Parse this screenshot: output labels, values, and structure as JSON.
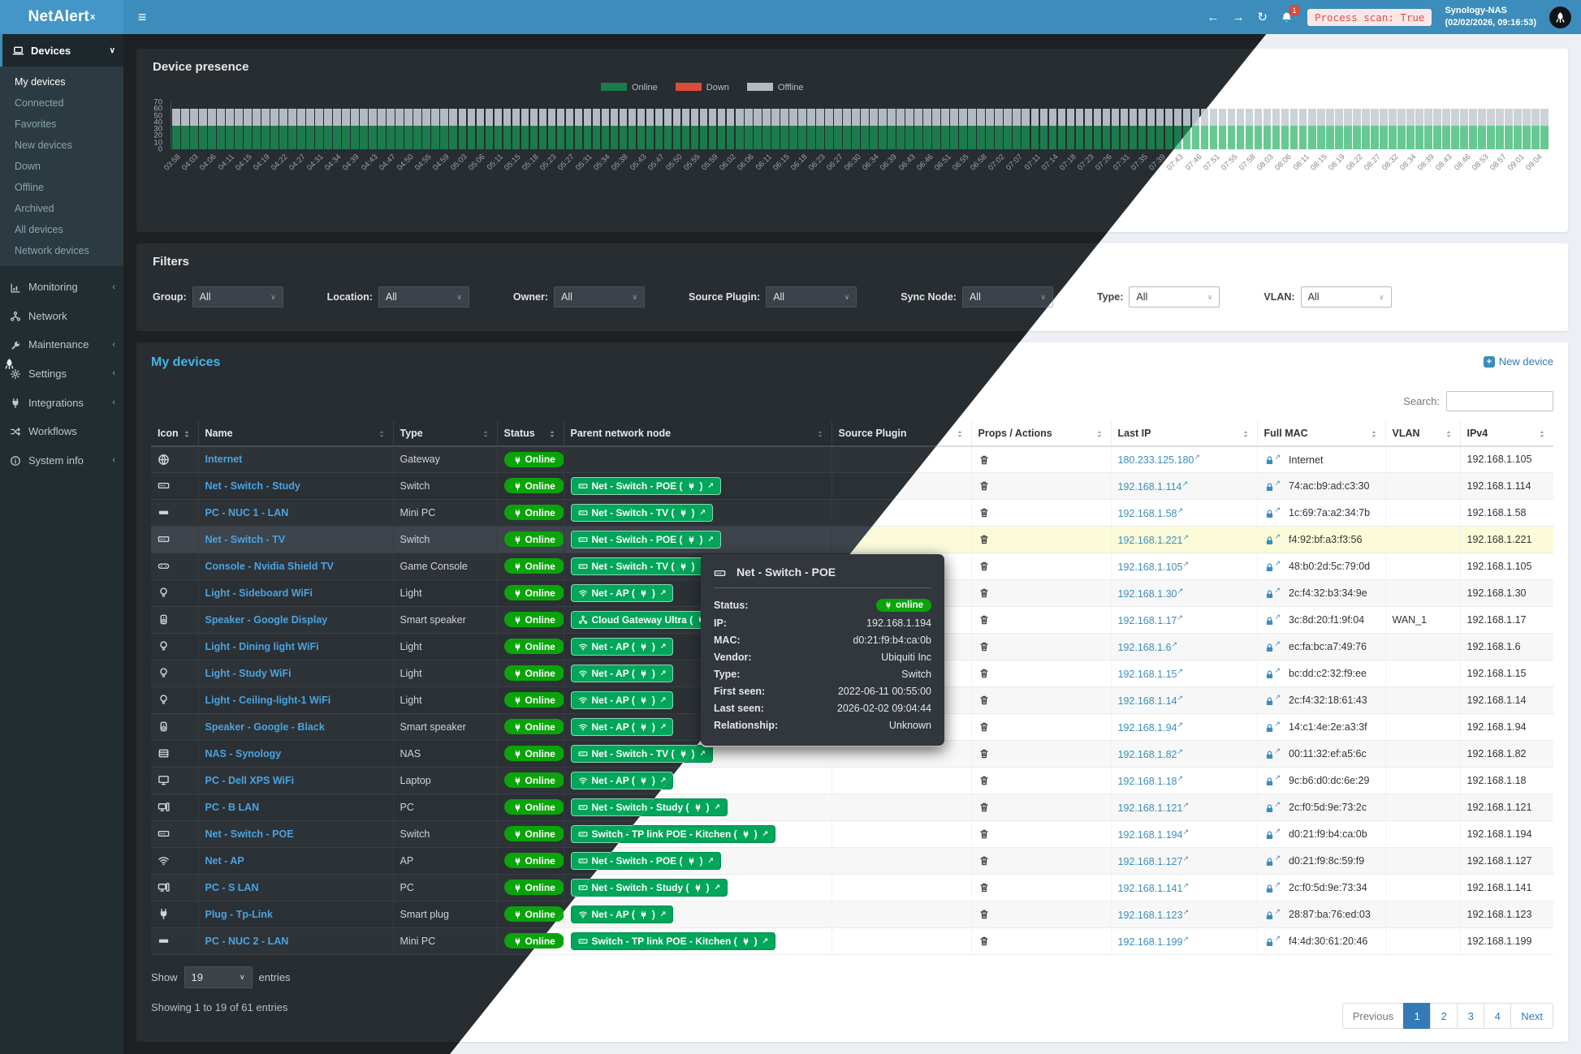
{
  "header": {
    "brand": "NetAlert",
    "brand_sup": "x",
    "bell_count": "1",
    "scan_text": "Process scan: True",
    "host": "Synology-NAS",
    "datetime": "(02/02/2026, 09:16:53)"
  },
  "sidebar": {
    "devices_header": {
      "label": "Devices",
      "icon": "laptop"
    },
    "device_views": [
      "My devices",
      "Connected",
      "Favorites",
      "New devices",
      "Down",
      "Offline",
      "Archived",
      "All devices",
      "Network devices"
    ],
    "active_view": "My devices",
    "sections": [
      {
        "label": "Monitoring",
        "icon": "chart",
        "chevron": true
      },
      {
        "label": "Network",
        "icon": "share",
        "chevron": false
      },
      {
        "label": "Maintenance",
        "icon": "wrench",
        "chevron": true
      },
      {
        "label": "Settings",
        "icon": "gear",
        "chevron": true
      },
      {
        "label": "Integrations",
        "icon": "plug",
        "chevron": true
      },
      {
        "label": "Workflows",
        "icon": "shuffle",
        "chevron": false
      },
      {
        "label": "System info",
        "icon": "info",
        "chevron": true
      }
    ]
  },
  "chart_data": {
    "type": "stacked-bar",
    "title": "Device presence",
    "legend": [
      {
        "label": "Online",
        "color_dark": "#1b7b4c",
        "color_light": "#66c992"
      },
      {
        "label": "Down",
        "color_dark": "#dd4b39",
        "color_light": "#dd4b39"
      },
      {
        "label": "Offline",
        "color_dark": "#b4bac1",
        "color_light": "#ccd2d8"
      }
    ],
    "y_ticks": [
      0,
      10,
      20,
      30,
      40,
      50,
      60,
      70
    ],
    "y_max": 70,
    "bar_count": 154,
    "x_labels": [
      "03:58",
      "04:03",
      "04:06",
      "04:11",
      "04:15",
      "04:19",
      "04:22",
      "04:27",
      "04:31",
      "04:34",
      "04:39",
      "04:43",
      "04:47",
      "04:50",
      "04:55",
      "04:59",
      "05:03",
      "05:06",
      "05:11",
      "05:15",
      "05:18",
      "05:23",
      "05:27",
      "05:31",
      "05:34",
      "05:38",
      "05:43",
      "05:47",
      "05:50",
      "05:55",
      "05:59",
      "06:02",
      "06:06",
      "06:11",
      "06:15",
      "06:18",
      "06:23",
      "06:27",
      "06:30",
      "06:34",
      "06:39",
      "06:43",
      "06:46",
      "06:51",
      "06:55",
      "06:58",
      "07:02",
      "07:07",
      "07:11",
      "07:14",
      "07:18",
      "07:23",
      "07:26",
      "07:31",
      "07:35",
      "07:39",
      "07:43",
      "07:46",
      "07:51",
      "07:55",
      "07:58",
      "08:03",
      "08:06",
      "08:11",
      "08:15",
      "08:19",
      "08:22",
      "08:27",
      "08:32",
      "08:34",
      "08:39",
      "08:43",
      "08:46",
      "08:53",
      "08:57",
      "09:01",
      "09:04"
    ],
    "series": [
      {
        "name": "Online",
        "uniform_value": 35
      },
      {
        "name": "Down",
        "uniform_value": 0
      },
      {
        "name": "Offline",
        "uniform_value": 25
      }
    ]
  },
  "filters": {
    "title": "Filters",
    "groups": [
      {
        "label": "Group:",
        "value": "All"
      },
      {
        "label": "Location:",
        "value": "All"
      },
      {
        "label": "Owner:",
        "value": "All"
      },
      {
        "label": "Source Plugin:",
        "value": "All"
      },
      {
        "label": "Sync Node:",
        "value": "All"
      },
      {
        "label": "Type:",
        "value": "All"
      },
      {
        "label": "VLAN:",
        "value": "All"
      }
    ]
  },
  "devices": {
    "title": "My devices",
    "new_device": "New device",
    "search_label": "Search:",
    "search_value": "",
    "columns": [
      {
        "label": "Icon",
        "sorted": true
      },
      {
        "label": "Name",
        "sorted": false
      },
      {
        "label": "Type",
        "sorted": false
      },
      {
        "label": "Status",
        "sorted": true
      },
      {
        "label": "Parent network node",
        "sorted": false
      },
      {
        "label": "Source Plugin",
        "sorted": false
      },
      {
        "label": "Props / Actions",
        "sorted": false
      },
      {
        "label": "Last IP",
        "sorted": false
      },
      {
        "label": "Full MAC",
        "sorted": false
      },
      {
        "label": "VLAN",
        "sorted": false
      },
      {
        "label": "IPv4",
        "sorted": false
      }
    ],
    "rows": [
      {
        "icon": "globe",
        "name": "Internet",
        "type": "Gateway",
        "status": "Online",
        "parent": null,
        "source_plugin": "",
        "last_ip": "180.233.125.180",
        "mac": "Internet",
        "vlan": "",
        "ipv4": "192.168.1.105",
        "highlight": false
      },
      {
        "icon": "switch",
        "name": "Net - Switch - Study",
        "type": "Switch",
        "status": "Online",
        "parent": {
          "icon": "switch",
          "label": "Net - Switch - POE"
        },
        "source_plugin": "",
        "last_ip": "192.168.1.114",
        "mac": "74:ac:b9:ad:c3:30",
        "vlan": "",
        "ipv4": "192.168.1.114",
        "highlight": false
      },
      {
        "icon": "minipc",
        "name": "PC - NUC 1 - LAN",
        "type": "Mini PC",
        "status": "Online",
        "parent": {
          "icon": "switch",
          "label": "Net - Switch - TV"
        },
        "source_plugin": "",
        "last_ip": "192.168.1.58",
        "mac": "1c:69:7a:a2:34:7b",
        "vlan": "",
        "ipv4": "192.168.1.58",
        "highlight": false
      },
      {
        "icon": "switch",
        "name": "Net - Switch - TV",
        "type": "Switch",
        "status": "Online",
        "parent": {
          "icon": "switch",
          "label": "Net - Switch - POE"
        },
        "source_plugin": "",
        "last_ip": "192.168.1.221",
        "mac": "f4:92:bf:a3:f3:56",
        "vlan": "",
        "ipv4": "192.168.1.221",
        "highlight": true
      },
      {
        "icon": "gamepad",
        "name": "Console - Nvidia Shield TV",
        "type": "Game Console",
        "status": "Online",
        "parent": {
          "icon": "switch",
          "label": "Net - Switch - TV"
        },
        "source_plugin": "",
        "last_ip": "192.168.1.105",
        "mac": "48:b0:2d:5c:79:0d",
        "vlan": "",
        "ipv4": "192.168.1.105",
        "highlight": false
      },
      {
        "icon": "bulb",
        "name": "Light - Sideboard WiFi",
        "type": "Light",
        "status": "Online",
        "parent": {
          "icon": "wifi",
          "label": "Net - AP"
        },
        "source_plugin": "",
        "last_ip": "192.168.1.30",
        "mac": "2c:f4:32:b3:34:9e",
        "vlan": "",
        "ipv4": "192.168.1.30",
        "highlight": false
      },
      {
        "icon": "speaker",
        "name": "Speaker - Google Display",
        "type": "Smart speaker",
        "status": "Online",
        "parent": {
          "icon": "share",
          "label": "Cloud Gateway Ultra"
        },
        "source_plugin": "",
        "last_ip": "192.168.1.17",
        "mac": "3c:8d:20:f1:9f:04",
        "vlan": "WAN_1",
        "ipv4": "192.168.1.17",
        "highlight": false
      },
      {
        "icon": "bulb",
        "name": "Light - Dining light WiFi",
        "type": "Light",
        "status": "Online",
        "parent": {
          "icon": "wifi",
          "label": "Net - AP"
        },
        "source_plugin": "",
        "last_ip": "192.168.1.6",
        "mac": "ec:fa:bc:a7:49:76",
        "vlan": "",
        "ipv4": "192.168.1.6",
        "highlight": false
      },
      {
        "icon": "bulb",
        "name": "Light - Study WiFi",
        "type": "Light",
        "status": "Online",
        "parent": {
          "icon": "wifi",
          "label": "Net - AP"
        },
        "source_plugin": "",
        "last_ip": "192.168.1.15",
        "mac": "bc:dd:c2:32:f9:ee",
        "vlan": "",
        "ipv4": "192.168.1.15",
        "highlight": false
      },
      {
        "icon": "bulb",
        "name": "Light - Ceiling-light-1 WiFi",
        "type": "Light",
        "status": "Online",
        "parent": {
          "icon": "wifi",
          "label": "Net - AP"
        },
        "source_plugin": "",
        "last_ip": "192.168.1.14",
        "mac": "2c:f4:32:18:61:43",
        "vlan": "",
        "ipv4": "192.168.1.14",
        "highlight": false
      },
      {
        "icon": "speaker",
        "name": "Speaker - Google - Black",
        "type": "Smart speaker",
        "status": "Online",
        "parent": {
          "icon": "wifi",
          "label": "Net - AP"
        },
        "source_plugin": "",
        "last_ip": "192.168.1.94",
        "mac": "14:c1:4e:2e:a3:3f",
        "vlan": "",
        "ipv4": "192.168.1.94",
        "highlight": false
      },
      {
        "icon": "nas",
        "name": "NAS - Synology",
        "type": "NAS",
        "status": "Online",
        "parent": {
          "icon": "switch",
          "label": "Net - Switch - TV"
        },
        "source_plugin": "",
        "last_ip": "192.168.1.82",
        "mac": "00:11:32:ef:a5:6c",
        "vlan": "",
        "ipv4": "192.168.1.82",
        "highlight": false
      },
      {
        "icon": "monitor",
        "name": "PC - Dell XPS WiFi",
        "type": "Laptop",
        "status": "Online",
        "parent": {
          "icon": "wifi",
          "label": "Net - AP"
        },
        "source_plugin": "",
        "last_ip": "192.168.1.18",
        "mac": "9c:b6:d0:dc:6e:29",
        "vlan": "",
        "ipv4": "192.168.1.18",
        "highlight": false
      },
      {
        "icon": "pc",
        "name": "PC - B LAN",
        "type": "PC",
        "status": "Online",
        "parent": {
          "icon": "switch",
          "label": "Net - Switch - Study"
        },
        "source_plugin": "",
        "last_ip": "192.168.1.121",
        "mac": "2c:f0:5d:9e:73:2c",
        "vlan": "",
        "ipv4": "192.168.1.121",
        "highlight": false
      },
      {
        "icon": "switch",
        "name": "Net - Switch - POE",
        "type": "Switch",
        "status": "Online",
        "parent": {
          "icon": "switch",
          "label": "Switch - TP link POE - Kitchen"
        },
        "source_plugin": "",
        "last_ip": "192.168.1.194",
        "mac": "d0:21:f9:b4:ca:0b",
        "vlan": "",
        "ipv4": "192.168.1.194",
        "highlight": false
      },
      {
        "icon": "wifi",
        "name": "Net - AP",
        "type": "AP",
        "status": "Online",
        "parent": {
          "icon": "switch",
          "label": "Net - Switch - POE"
        },
        "source_plugin": "",
        "last_ip": "192.168.1.127",
        "mac": "d0:21:f9:8c:59:f9",
        "vlan": "",
        "ipv4": "192.168.1.127",
        "highlight": false
      },
      {
        "icon": "pc",
        "name": "PC - S LAN",
        "type": "PC",
        "status": "Online",
        "parent": {
          "icon": "switch",
          "label": "Net - Switch - Study"
        },
        "source_plugin": "",
        "last_ip": "192.168.1.141",
        "mac": "2c:f0:5d:9e:73:34",
        "vlan": "",
        "ipv4": "192.168.1.141",
        "highlight": false
      },
      {
        "icon": "plug",
        "name": "Plug - Tp-Link",
        "type": "Smart plug",
        "status": "Online",
        "parent": {
          "icon": "wifi",
          "label": "Net - AP"
        },
        "source_plugin": "",
        "last_ip": "192.168.1.123",
        "mac": "28:87:ba:76:ed:03",
        "vlan": "",
        "ipv4": "192.168.1.123",
        "highlight": false
      },
      {
        "icon": "minipc",
        "name": "PC - NUC 2 - LAN",
        "type": "Mini PC",
        "status": "Online",
        "parent": {
          "icon": "switch",
          "label": "Switch - TP link POE - Kitchen"
        },
        "source_plugin": "",
        "last_ip": "192.168.1.199",
        "mac": "f4:4d:30:61:20:46",
        "vlan": "",
        "ipv4": "192.168.1.199",
        "highlight": false
      }
    ],
    "show_label": "Show",
    "entries_value": "19",
    "entries_suffix": "entries",
    "summary": "Showing 1 to 19 of 61 entries",
    "pagination": {
      "previous": "Previous",
      "pages": [
        "1",
        "2",
        "3",
        "4"
      ],
      "active": "1",
      "next": "Next"
    }
  },
  "tooltip": {
    "title": "Net - Switch - POE",
    "icon": "switch",
    "fields": [
      {
        "label": "Status:",
        "value": "online",
        "badge": true
      },
      {
        "label": "IP:",
        "value": "192.168.1.194",
        "badge": false
      },
      {
        "label": "MAC:",
        "value": "d0:21:f9:b4:ca:0b",
        "badge": false
      },
      {
        "label": "Vendor:",
        "value": "Ubiquiti Inc",
        "badge": false
      },
      {
        "label": "Type:",
        "value": "Switch",
        "badge": false
      },
      {
        "label": "First seen:",
        "value": "2022-06-11 00:55:00",
        "badge": false
      },
      {
        "label": "Last seen:",
        "value": "2026-02-02 09:04:44",
        "badge": false
      },
      {
        "label": "Relationship:",
        "value": "Unknown",
        "badge": false
      }
    ]
  },
  "colors": {
    "header_blue": "#3c8dbc",
    "sidebar_dark": "#222d32",
    "submenu_bg": "#2c3b41",
    "online_badge_green": "#0aa40a",
    "chip_green": "#00a65a",
    "link_blue": "#3c8dbc",
    "highlight_row_yellow": "#fbfbda",
    "alert_red": "#dd4b39"
  }
}
